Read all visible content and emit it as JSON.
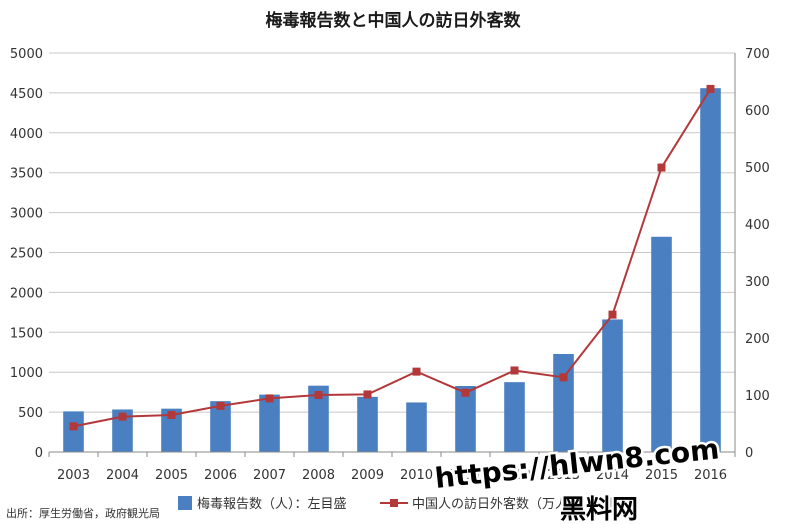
{
  "chart_data": {
    "type": "bar",
    "title": "梅毒報告数と中国人の訪日外客数",
    "categories": [
      "2003",
      "2004",
      "2005",
      "2006",
      "2007",
      "2008",
      "2009",
      "2010",
      "2011",
      "2012",
      "2013",
      "2014",
      "2015",
      "2016"
    ],
    "series": [
      {
        "name": "梅毒報告数（人）：左目盛",
        "type": "bar",
        "axis": "left",
        "color": "#4a7fc1",
        "values": [
          509,
          533,
          543,
          637,
          719,
          831,
          691,
          621,
          827,
          875,
          1228,
          1661,
          2697,
          4559
        ]
      },
      {
        "name": "中国人の訪日外客数（万人）：右目盛",
        "type": "line",
        "axis": "right",
        "color": "#b3383a",
        "values": [
          45,
          62,
          65,
          81,
          94,
          100,
          101,
          141,
          104,
          143,
          131,
          241,
          499,
          637
        ]
      }
    ],
    "yleft": {
      "ylim": [
        0,
        5000
      ],
      "ticks": [
        "0",
        "500",
        "1000",
        "1500",
        "2000",
        "2500",
        "3000",
        "3500",
        "4000",
        "4500",
        "5000"
      ]
    },
    "yright": {
      "ylim": [
        0,
        700
      ],
      "ticks": [
        "0",
        "100",
        "200",
        "300",
        "400",
        "500",
        "600",
        "700"
      ]
    },
    "grid": "horizontal",
    "legend": "bottom"
  },
  "source": "出所：厚生労働省，政府観光局",
  "watermark": {
    "line1": "https://hlwn8.com",
    "line2": "黑料网"
  }
}
